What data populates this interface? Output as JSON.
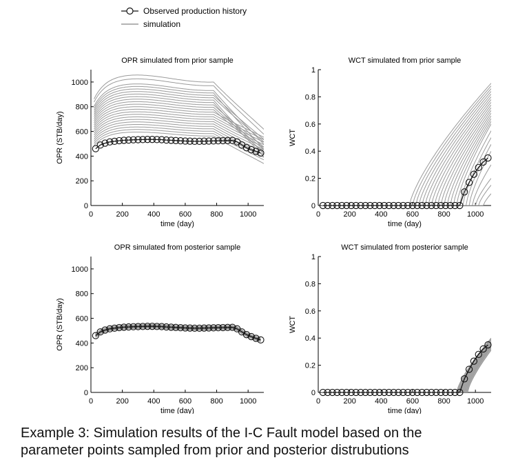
{
  "legend": {
    "observed_label": "Observed production history",
    "simulation_label": "simulation",
    "placement": "top-center"
  },
  "colors": {
    "simulation": "#9a9a9a",
    "observed_line": "#111111",
    "observed_marker_edge": "#111111",
    "axis": "#000000",
    "band_fill": "#8f8f8f"
  },
  "caption": {
    "line1": "Example 3: Simulation results of the I-C Fault model based on the",
    "line2": "parameter points sampled from prior and posterior distrubutions"
  },
  "chart_data": [
    {
      "id": "opr-prior",
      "type": "line",
      "title": "OPR simulated from prior sample",
      "xlabel": "time (day)",
      "ylabel": "OPR (STB/day)",
      "xlim": [
        0,
        1100
      ],
      "ylim": [
        0,
        1100
      ],
      "xticks": [
        0,
        200,
        400,
        600,
        800,
        1000
      ],
      "yticks": [
        0,
        200,
        400,
        600,
        800,
        1000
      ],
      "observed": {
        "name": "Observed production history",
        "x": [
          30,
          60,
          90,
          120,
          150,
          180,
          210,
          240,
          270,
          300,
          330,
          360,
          390,
          420,
          450,
          480,
          510,
          540,
          570,
          600,
          630,
          660,
          690,
          720,
          750,
          780,
          810,
          840,
          870,
          900,
          930,
          960,
          990,
          1020,
          1050,
          1080
        ],
        "y": [
          460,
          490,
          505,
          515,
          520,
          525,
          528,
          530,
          532,
          533,
          534,
          535,
          535,
          534,
          533,
          530,
          528,
          526,
          524,
          522,
          521,
          520,
          520,
          521,
          522,
          523,
          524,
          525,
          526,
          527,
          515,
          490,
          468,
          452,
          438,
          425
        ]
      },
      "sim_plateaus": [
        580,
        600,
        620,
        640,
        660,
        680,
        700,
        720,
        740,
        760,
        780,
        800,
        820,
        840,
        860,
        880,
        900,
        920,
        940,
        960,
        1000,
        1030
      ],
      "sim_end": [
        330,
        360,
        380,
        400,
        420,
        440,
        460,
        480,
        500,
        520,
        540,
        420,
        440,
        460,
        380,
        400,
        500,
        520,
        440,
        480,
        560,
        600
      ]
    },
    {
      "id": "wct-prior",
      "type": "line",
      "title": "WCT simulated from prior sample",
      "xlabel": "time (day)",
      "ylabel": "WCT",
      "xlim": [
        0,
        1100
      ],
      "ylim": [
        0,
        1
      ],
      "xticks": [
        0,
        200,
        400,
        600,
        800,
        1000
      ],
      "yticks": [
        0,
        0.2,
        0.4,
        0.6,
        0.8,
        1
      ],
      "observed": {
        "name": "Observed production history",
        "x": [
          30,
          60,
          90,
          120,
          150,
          180,
          210,
          240,
          270,
          300,
          330,
          360,
          390,
          420,
          450,
          480,
          510,
          540,
          570,
          600,
          630,
          660,
          690,
          720,
          750,
          780,
          810,
          840,
          870,
          900,
          930,
          960,
          990,
          1020,
          1050,
          1080
        ],
        "y": [
          0,
          0,
          0,
          0,
          0,
          0,
          0,
          0,
          0,
          0,
          0,
          0,
          0,
          0,
          0,
          0,
          0,
          0,
          0,
          0,
          0,
          0,
          0,
          0,
          0,
          0,
          0,
          0,
          0,
          0,
          0.1,
          0.17,
          0.23,
          0.28,
          0.32,
          0.35
        ]
      },
      "sim_breakthrough": [
        580,
        600,
        620,
        640,
        660,
        680,
        700,
        720,
        740,
        760,
        780,
        800,
        820,
        840,
        860,
        880,
        900,
        920,
        940,
        960,
        980,
        1000,
        1020,
        1050
      ],
      "sim_end": [
        0.9,
        0.88,
        0.86,
        0.84,
        0.82,
        0.8,
        0.78,
        0.76,
        0.74,
        0.72,
        0.7,
        0.68,
        0.66,
        0.64,
        0.62,
        0.6,
        0.55,
        0.5,
        0.45,
        0.4,
        0.3,
        0.2,
        0.15,
        0.1
      ]
    },
    {
      "id": "opr-posterior",
      "type": "line",
      "title": "OPR simulated from posterior sample",
      "xlabel": "time (day)",
      "ylabel": "OPR (STB/day)",
      "xlim": [
        0,
        1100
      ],
      "ylim": [
        0,
        1100
      ],
      "xticks": [
        0,
        200,
        400,
        600,
        800,
        1000
      ],
      "yticks": [
        0,
        200,
        400,
        600,
        800,
        1000
      ],
      "observed": {
        "name": "Observed production history",
        "x": [
          30,
          60,
          90,
          120,
          150,
          180,
          210,
          240,
          270,
          300,
          330,
          360,
          390,
          420,
          450,
          480,
          510,
          540,
          570,
          600,
          630,
          660,
          690,
          720,
          750,
          780,
          810,
          840,
          870,
          900,
          930,
          960,
          990,
          1020,
          1050,
          1080
        ],
        "y": [
          460,
          490,
          505,
          515,
          520,
          525,
          528,
          530,
          532,
          533,
          534,
          535,
          535,
          534,
          533,
          530,
          528,
          526,
          524,
          522,
          521,
          520,
          520,
          521,
          522,
          523,
          524,
          525,
          526,
          527,
          515,
          490,
          468,
          452,
          438,
          425
        ]
      },
      "sim_offsets": [
        -12,
        -8,
        -4,
        0,
        4,
        8,
        12
      ]
    },
    {
      "id": "wct-posterior",
      "type": "line",
      "title": "WCT simulated from posterior sample",
      "xlabel": "time (day)",
      "ylabel": "WCT",
      "xlim": [
        0,
        1100
      ],
      "ylim": [
        0,
        1
      ],
      "xticks": [
        0,
        200,
        400,
        600,
        800,
        1000
      ],
      "yticks": [
        0,
        0.2,
        0.4,
        0.6,
        0.8,
        1
      ],
      "observed": {
        "name": "Observed production history",
        "x": [
          30,
          60,
          90,
          120,
          150,
          180,
          210,
          240,
          270,
          300,
          330,
          360,
          390,
          420,
          450,
          480,
          510,
          540,
          570,
          600,
          630,
          660,
          690,
          720,
          750,
          780,
          810,
          840,
          870,
          900,
          930,
          960,
          990,
          1020,
          1050,
          1080
        ],
        "y": [
          0,
          0,
          0,
          0,
          0,
          0,
          0,
          0,
          0,
          0,
          0,
          0,
          0,
          0,
          0,
          0,
          0,
          0,
          0,
          0,
          0,
          0,
          0,
          0,
          0,
          0,
          0,
          0,
          0,
          0,
          0.1,
          0.17,
          0.23,
          0.28,
          0.32,
          0.35
        ]
      },
      "sim_breakthrough": [
        880,
        890,
        900,
        910,
        920,
        930,
        940,
        950
      ],
      "sim_end": [
        0.4,
        0.39,
        0.37,
        0.36,
        0.35,
        0.34,
        0.33,
        0.31
      ]
    }
  ]
}
